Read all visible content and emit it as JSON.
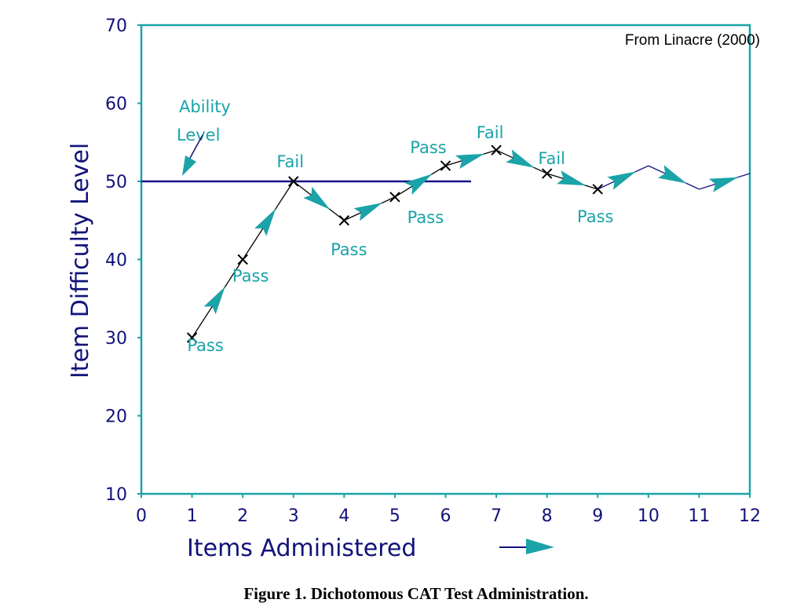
{
  "chart_data": {
    "type": "line",
    "source_note": "From Linacre (2000)",
    "caption": "Figure 1. Dichotomous CAT Test Administration.",
    "xlabel": "Items Administered",
    "ylabel": "Item Difficulty Level",
    "xlim": [
      0,
      12
    ],
    "ylim": [
      10,
      70
    ],
    "x_ticks": [
      "0",
      "1",
      "2",
      "3",
      "4",
      "5",
      "6",
      "7",
      "8",
      "9",
      "10",
      "11",
      "12"
    ],
    "y_ticks": [
      "10",
      "20",
      "30",
      "40",
      "50",
      "60",
      "70"
    ],
    "ability_level": 50,
    "ability_label_line1": "Ability",
    "ability_label_line2": "Level",
    "points": [
      {
        "x": 1,
        "y": 30,
        "label": "Pass"
      },
      {
        "x": 2,
        "y": 40,
        "label": "Pass"
      },
      {
        "x": 3,
        "y": 50,
        "label": "Fail"
      },
      {
        "x": 4,
        "y": 45,
        "label": "Pass"
      },
      {
        "x": 5,
        "y": 48,
        "label": "Pass"
      },
      {
        "x": 6,
        "y": 52,
        "label": "Pass"
      },
      {
        "x": 7,
        "y": 54,
        "label": "Fail"
      },
      {
        "x": 8,
        "y": 51,
        "label": "Fail"
      },
      {
        "x": 9,
        "y": 49,
        "label": "Pass"
      }
    ],
    "continuation": [
      {
        "x": 10,
        "y": 52
      },
      {
        "x": 11,
        "y": 49
      },
      {
        "x": 12,
        "y": 51
      }
    ],
    "colors": {
      "axes": "#1aa3a8",
      "text": "#12127a",
      "annotation": "#1aa3a8",
      "arrow": "#1aa3a8",
      "ability_line": "#14148a",
      "path": "#000000"
    }
  }
}
